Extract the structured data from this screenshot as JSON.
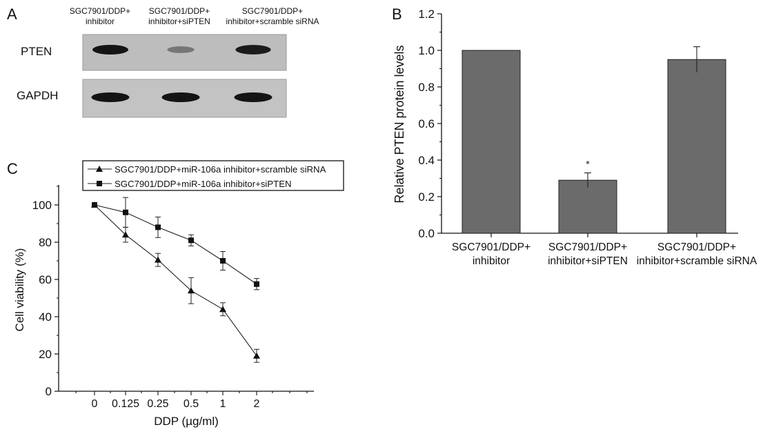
{
  "panel_a": {
    "label": "A",
    "lane_headers": [
      [
        "SGC7901/DDP+",
        "inhibitor"
      ],
      [
        "SGC7901/DDP+",
        "inhibitor+siPTEN"
      ],
      [
        "SGC7901/DDP+",
        "inhibitor+scramble siRNA"
      ]
    ],
    "rows": [
      {
        "label": "PTEN",
        "band_intensity": [
          1.0,
          0.3,
          0.95
        ]
      },
      {
        "label": "GAPDH",
        "band_intensity": [
          1.0,
          1.0,
          1.0
        ]
      }
    ]
  },
  "chart_data": [
    {
      "panel": "B",
      "type": "bar",
      "categories": [
        [
          "SGC7901/DDP+",
          "inhibitor"
        ],
        [
          "SGC7901/DDP+",
          "inhibitor+siPTEN"
        ],
        [
          "SGC7901/DDP+",
          "inhibitor+scramble siRNA"
        ]
      ],
      "values": [
        1.0,
        0.29,
        0.95
      ],
      "errors": [
        0,
        0.04,
        0.07
      ],
      "annotations": [
        "",
        "*",
        ""
      ],
      "ylabel": "Relative PTEN protein levels",
      "ylim": [
        0,
        1.2
      ],
      "yticks": [
        "0.0",
        "0.2",
        "0.4",
        "0.6",
        "0.8",
        "1.0",
        "1.2"
      ],
      "bar_color": "#6b6b6b"
    },
    {
      "panel": "C",
      "type": "line",
      "x": [
        "0",
        "0.125",
        "0.25",
        "0.5",
        "1",
        "2"
      ],
      "xlabel": "DDP (µg/ml)",
      "ylabel": "Cell viability (%)",
      "ylim": [
        0,
        110
      ],
      "yticks": [
        "0",
        "20",
        "40",
        "60",
        "80",
        "100"
      ],
      "legend_position": "top",
      "series": [
        {
          "name": "SGC7901/DDP+miR-106a inhibitor+scramble siRNA",
          "marker": "triangle",
          "values": [
            100,
            84,
            70.5,
            54,
            44,
            19
          ],
          "errors": [
            0,
            4,
            3.5,
            7,
            3.5,
            3.5
          ]
        },
        {
          "name": "SGC7901/DDP+miR-106a inhibitor+siPTEN",
          "marker": "square",
          "values": [
            100,
            96,
            88,
            81,
            70,
            57.5
          ],
          "errors": [
            0,
            8,
            5.5,
            3,
            5,
            3
          ]
        }
      ]
    }
  ]
}
